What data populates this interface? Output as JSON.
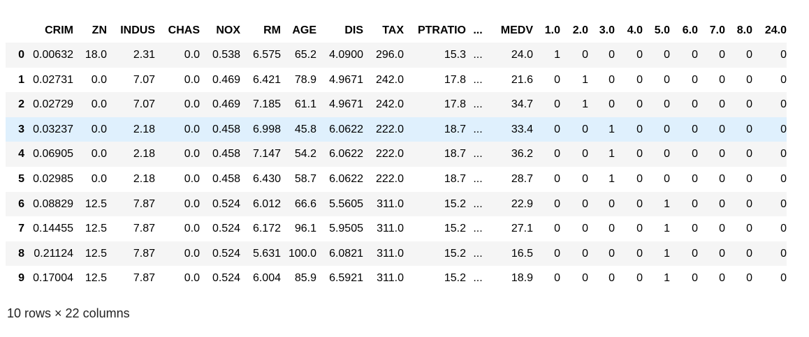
{
  "table": {
    "columns": [
      "",
      "CRIM",
      "ZN",
      "INDUS",
      "CHAS",
      "NOX",
      "RM",
      "AGE",
      "DIS",
      "TAX",
      "PTRATIO",
      "...",
      "MEDV",
      "1.0",
      "2.0",
      "3.0",
      "4.0",
      "5.0",
      "6.0",
      "7.0",
      "8.0",
      "24.0"
    ],
    "rows": [
      [
        "0",
        "0.00632",
        "18.0",
        "2.31",
        "0.0",
        "0.538",
        "6.575",
        "65.2",
        "4.0900",
        "296.0",
        "15.3",
        "...",
        "24.0",
        "1",
        "0",
        "0",
        "0",
        "0",
        "0",
        "0",
        "0",
        "0"
      ],
      [
        "1",
        "0.02731",
        "0.0",
        "7.07",
        "0.0",
        "0.469",
        "6.421",
        "78.9",
        "4.9671",
        "242.0",
        "17.8",
        "...",
        "21.6",
        "0",
        "1",
        "0",
        "0",
        "0",
        "0",
        "0",
        "0",
        "0"
      ],
      [
        "2",
        "0.02729",
        "0.0",
        "7.07",
        "0.0",
        "0.469",
        "7.185",
        "61.1",
        "4.9671",
        "242.0",
        "17.8",
        "...",
        "34.7",
        "0",
        "1",
        "0",
        "0",
        "0",
        "0",
        "0",
        "0",
        "0"
      ],
      [
        "3",
        "0.03237",
        "0.0",
        "2.18",
        "0.0",
        "0.458",
        "6.998",
        "45.8",
        "6.0622",
        "222.0",
        "18.7",
        "...",
        "33.4",
        "0",
        "0",
        "1",
        "0",
        "0",
        "0",
        "0",
        "0",
        "0"
      ],
      [
        "4",
        "0.06905",
        "0.0",
        "2.18",
        "0.0",
        "0.458",
        "7.147",
        "54.2",
        "6.0622",
        "222.0",
        "18.7",
        "...",
        "36.2",
        "0",
        "0",
        "1",
        "0",
        "0",
        "0",
        "0",
        "0",
        "0"
      ],
      [
        "5",
        "0.02985",
        "0.0",
        "2.18",
        "0.0",
        "0.458",
        "6.430",
        "58.7",
        "6.0622",
        "222.0",
        "18.7",
        "...",
        "28.7",
        "0",
        "0",
        "1",
        "0",
        "0",
        "0",
        "0",
        "0",
        "0"
      ],
      [
        "6",
        "0.08829",
        "12.5",
        "7.87",
        "0.0",
        "0.524",
        "6.012",
        "66.6",
        "5.5605",
        "311.0",
        "15.2",
        "...",
        "22.9",
        "0",
        "0",
        "0",
        "0",
        "1",
        "0",
        "0",
        "0",
        "0"
      ],
      [
        "7",
        "0.14455",
        "12.5",
        "7.87",
        "0.0",
        "0.524",
        "6.172",
        "96.1",
        "5.9505",
        "311.0",
        "15.2",
        "...",
        "27.1",
        "0",
        "0",
        "0",
        "0",
        "1",
        "0",
        "0",
        "0",
        "0"
      ],
      [
        "8",
        "0.21124",
        "12.5",
        "7.87",
        "0.0",
        "0.524",
        "5.631",
        "100.0",
        "6.0821",
        "311.0",
        "15.2",
        "...",
        "16.5",
        "0",
        "0",
        "0",
        "0",
        "1",
        "0",
        "0",
        "0",
        "0"
      ],
      [
        "9",
        "0.17004",
        "12.5",
        "7.87",
        "0.0",
        "0.524",
        "6.004",
        "85.9",
        "6.5921",
        "311.0",
        "15.2",
        "...",
        "18.9",
        "0",
        "0",
        "0",
        "0",
        "1",
        "0",
        "0",
        "0",
        "0"
      ]
    ],
    "highlighted_row": 3,
    "footer": "10 rows × 22 columns"
  },
  "colors": {
    "stripe": "#f5f5f5",
    "hover": "#dff0fd"
  }
}
